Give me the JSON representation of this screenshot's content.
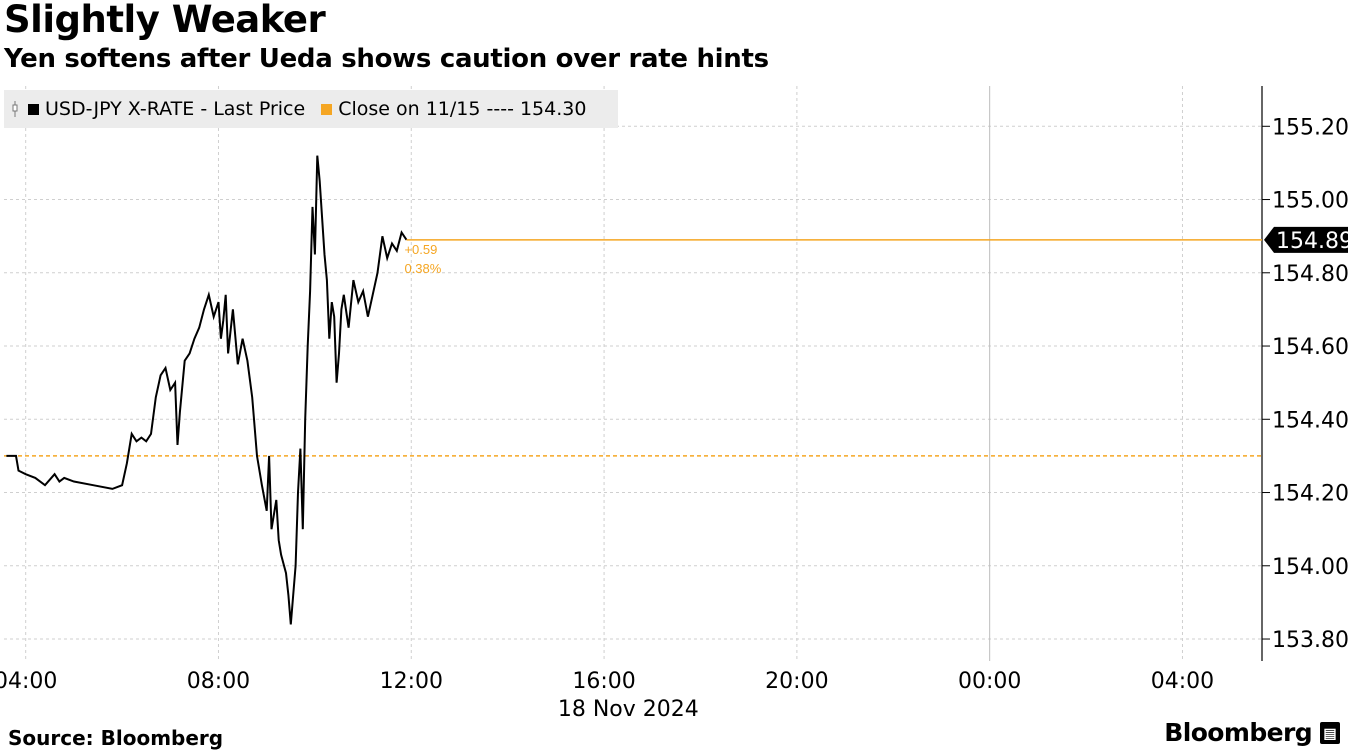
{
  "header": {
    "title": "Slightly Weaker",
    "subtitle": "Yen softens after Ueda shows caution over rate hints"
  },
  "legend": {
    "series_label": "USD-JPY X-RATE - Last Price",
    "close_label": "Close on 11/15 ---- 154.30",
    "series_icon": "candlestick-icon"
  },
  "footer": {
    "source": "Source: Bloomberg",
    "brand": "Bloomberg",
    "brand_icon": "terminal-icon"
  },
  "colors": {
    "series": "#000000",
    "reference": "#f5a623",
    "grid": "#cfcfcf",
    "legend_bg": "#ececec"
  },
  "chart_data": {
    "type": "line",
    "x_unit": "hours",
    "ylim": [
      153.74,
      155.31
    ],
    "xlim": [
      3.55,
      29.65
    ],
    "yticks": [
      153.8,
      154.0,
      154.2,
      154.4,
      154.6,
      154.8,
      155.0,
      155.2
    ],
    "ytick_labels": [
      "153.80",
      "154.00",
      "154.20",
      "154.40",
      "154.60",
      "154.80",
      "155.00",
      "155.20"
    ],
    "xticks": [
      4,
      8,
      12,
      16,
      20,
      24,
      28
    ],
    "xtick_labels": [
      "04:00",
      "08:00",
      "12:00",
      "16:00",
      "20:00",
      "00:00",
      "04:00"
    ],
    "date_label": "18 Nov 2024",
    "grid": true,
    "legend_position": "top-left",
    "last_value": 154.89,
    "last_value_label": "154.89",
    "change_abs": "+0.59",
    "change_pct": "0.38%",
    "reference": {
      "name": "Close on 11/15",
      "value": 154.3
    },
    "series": [
      {
        "name": "USD-JPY X-RATE - Last Price",
        "x": [
          3.6,
          3.8,
          3.85,
          4.0,
          4.2,
          4.4,
          4.6,
          4.7,
          4.8,
          5.0,
          5.4,
          5.8,
          6.0,
          6.1,
          6.2,
          6.3,
          6.4,
          6.5,
          6.6,
          6.7,
          6.8,
          6.9,
          7.0,
          7.1,
          7.15,
          7.2,
          7.3,
          7.4,
          7.5,
          7.6,
          7.7,
          7.8,
          7.9,
          8.0,
          8.05,
          8.1,
          8.15,
          8.2,
          8.3,
          8.4,
          8.5,
          8.6,
          8.7,
          8.8,
          8.9,
          9.0,
          9.05,
          9.1,
          9.2,
          9.25,
          9.3,
          9.4,
          9.45,
          9.5,
          9.55,
          9.6,
          9.65,
          9.7,
          9.75,
          9.8,
          9.85,
          9.9,
          9.95,
          10.0,
          10.05,
          10.1,
          10.15,
          10.2,
          10.25,
          10.3,
          10.35,
          10.4,
          10.45,
          10.5,
          10.55,
          10.6,
          10.7,
          10.8,
          10.9,
          11.0,
          11.1,
          11.2,
          11.3,
          11.4,
          11.5,
          11.6,
          11.7,
          11.8,
          11.9
        ],
        "y": [
          154.3,
          154.3,
          154.26,
          154.25,
          154.24,
          154.22,
          154.25,
          154.23,
          154.24,
          154.23,
          154.22,
          154.21,
          154.22,
          154.28,
          154.36,
          154.34,
          154.35,
          154.34,
          154.36,
          154.46,
          154.52,
          154.54,
          154.48,
          154.5,
          154.33,
          154.42,
          154.56,
          154.58,
          154.62,
          154.65,
          154.7,
          154.74,
          154.68,
          154.72,
          154.62,
          154.67,
          154.74,
          154.58,
          154.7,
          154.55,
          154.62,
          154.56,
          154.46,
          154.3,
          154.22,
          154.15,
          154.3,
          154.1,
          154.18,
          154.07,
          154.03,
          153.98,
          153.92,
          153.84,
          153.92,
          154.0,
          154.2,
          154.32,
          154.1,
          154.4,
          154.6,
          154.75,
          154.98,
          154.85,
          155.12,
          155.05,
          154.95,
          154.85,
          154.78,
          154.62,
          154.72,
          154.68,
          154.5,
          154.58,
          154.7,
          154.74,
          154.65,
          154.78,
          154.72,
          154.75,
          154.68,
          154.74,
          154.8,
          154.9,
          154.84,
          154.88,
          154.86,
          154.91,
          154.89
        ]
      }
    ]
  }
}
